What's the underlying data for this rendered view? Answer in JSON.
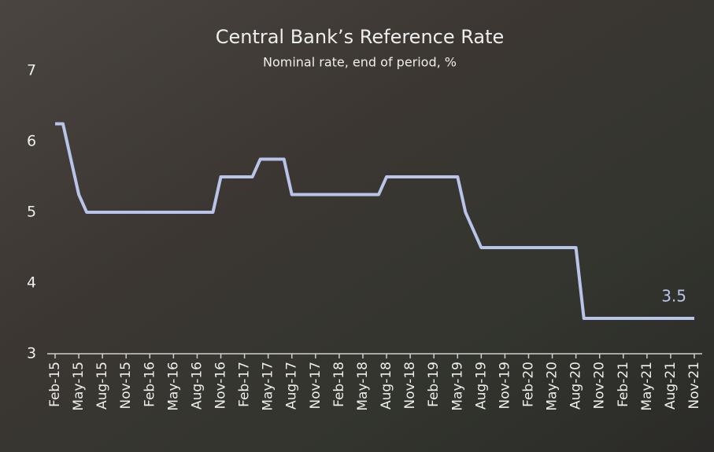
{
  "chart_data": {
    "type": "line",
    "title": "Central Bank’s Reference Rate",
    "subtitle": "Nominal rate, end of period, %",
    "categories": [
      "Feb-15",
      null,
      null,
      "May-15",
      null,
      null,
      "Aug-15",
      null,
      null,
      "Nov-15",
      null,
      null,
      "Feb-16",
      null,
      null,
      "May-16",
      null,
      null,
      "Aug-16",
      null,
      null,
      "Nov-16",
      null,
      null,
      "Feb-17",
      null,
      null,
      "May-17",
      null,
      null,
      "Aug-17",
      null,
      null,
      "Nov-17",
      null,
      null,
      "Feb-18",
      null,
      null,
      "May-18",
      null,
      null,
      "Aug-18",
      null,
      null,
      "Nov-18",
      null,
      null,
      "Feb-19",
      null,
      null,
      "May-19",
      null,
      null,
      "Aug-19",
      null,
      null,
      "Nov-19",
      null,
      null,
      "Feb-20",
      null,
      null,
      "May-20",
      null,
      null,
      "Aug-20",
      null,
      null,
      "Nov-20",
      null,
      null,
      "Feb-21",
      null,
      null,
      "May-21",
      null,
      null,
      "Aug-21",
      null,
      null,
      "Nov-21"
    ],
    "values": [
      6.25,
      6.25,
      5.75,
      5.25,
      5,
      5,
      5,
      5,
      5,
      5,
      5,
      5,
      5,
      5,
      5,
      5,
      5,
      5,
      5,
      5,
      5,
      5.5,
      5.5,
      5.5,
      5.5,
      5.5,
      5.75,
      5.75,
      5.75,
      5.75,
      5.25,
      5.25,
      5.25,
      5.25,
      5.25,
      5.25,
      5.25,
      5.25,
      5.25,
      5.25,
      5.25,
      5.25,
      5.5,
      5.5,
      5.5,
      5.5,
      5.5,
      5.5,
      5.5,
      5.5,
      5.5,
      5.5,
      5,
      4.75,
      4.5,
      4.5,
      4.5,
      4.5,
      4.5,
      4.5,
      4.5,
      4.5,
      4.5,
      4.5,
      4.5,
      4.5,
      4.5,
      3.5,
      3.5,
      3.5,
      3.5,
      3.5,
      3.5,
      3.5,
      3.5,
      3.5,
      3.5,
      3.5,
      3.5,
      3.5,
      3.5,
      3.5
    ],
    "color": "#b8c4e8",
    "ylim": [
      3,
      7
    ],
    "yticks": [
      3,
      4,
      5,
      6,
      7
    ],
    "grid": false
  }
}
